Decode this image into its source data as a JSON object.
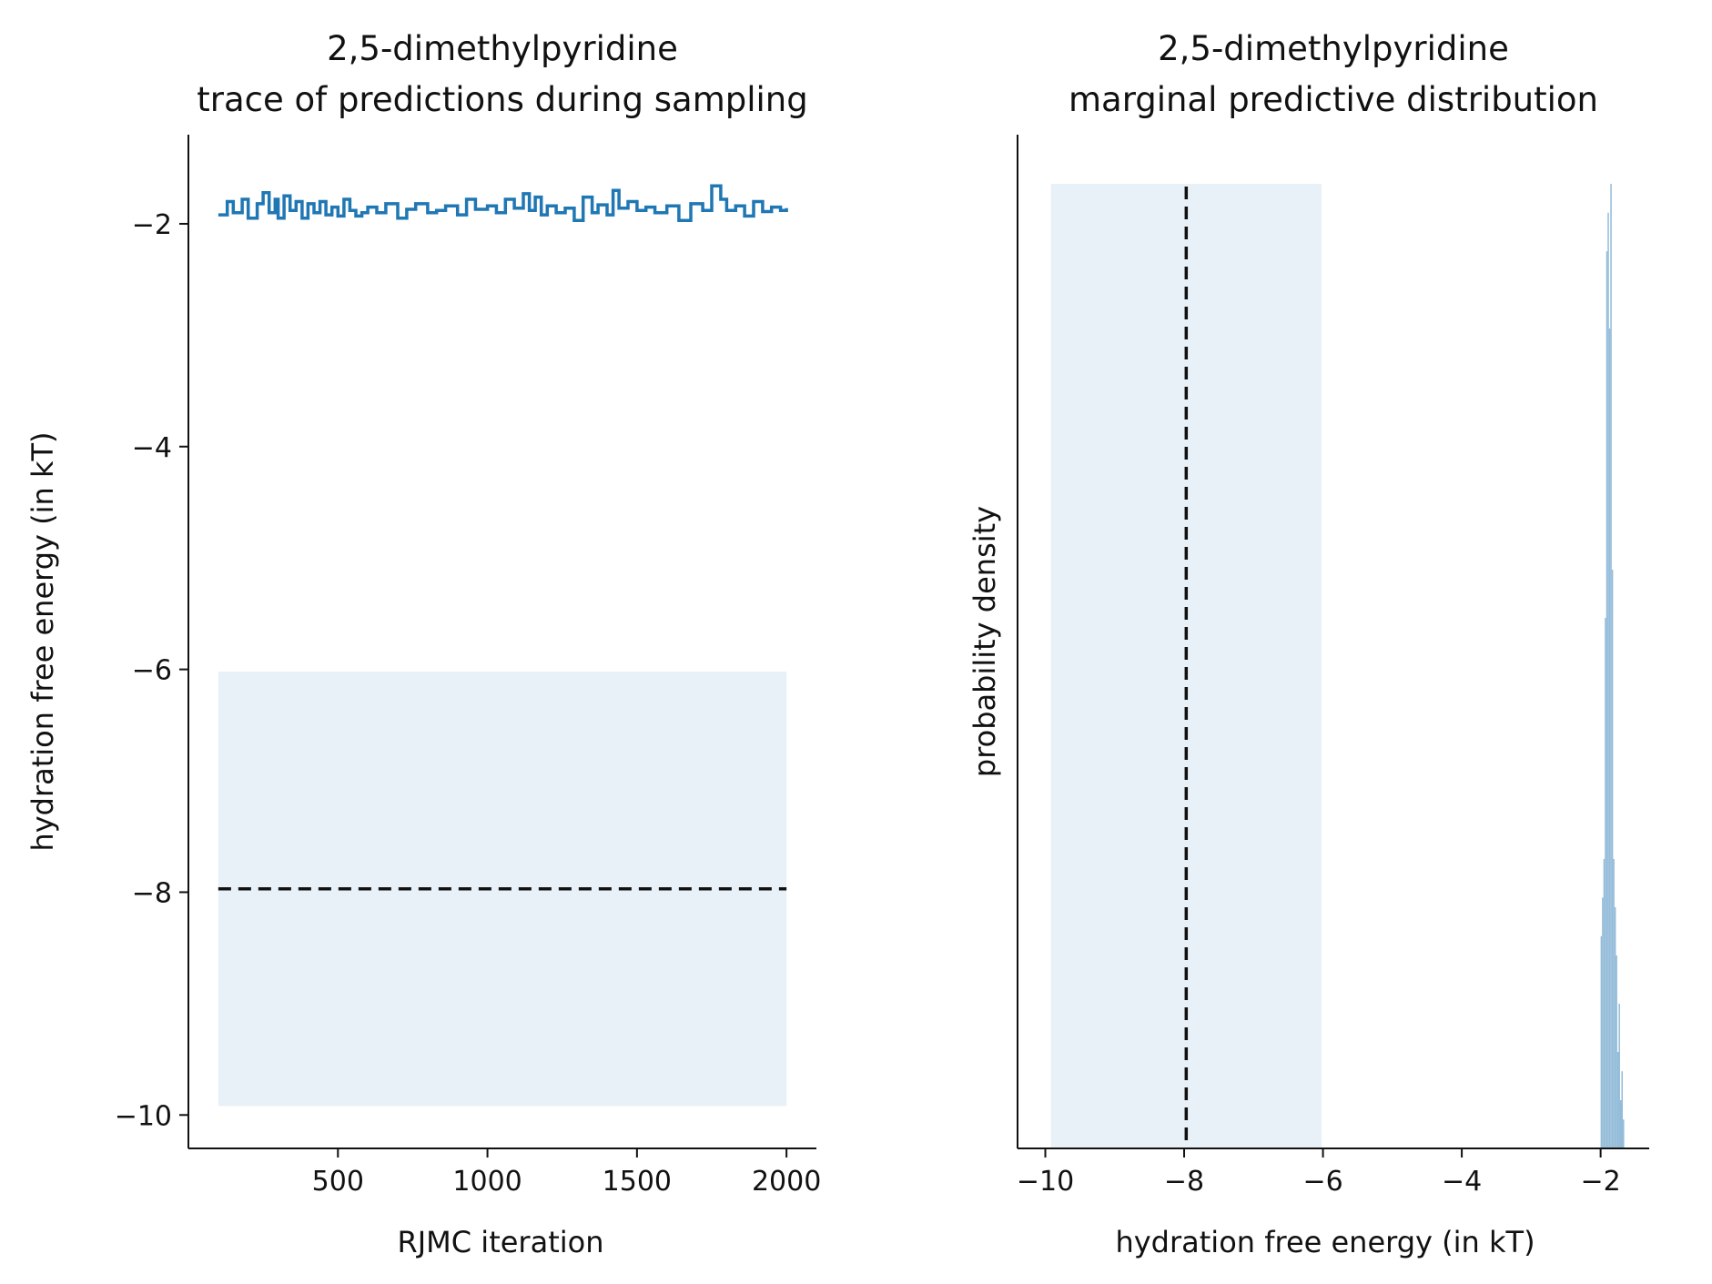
{
  "colors": {
    "trace": "#1f77b4",
    "band": "#e8f0f8",
    "hist": "#94bcd9",
    "reference": "#111111"
  },
  "chart_data": [
    {
      "type": "line",
      "title_line1": "2,5-dimethylpyridine",
      "title_line2": "trace of predictions during sampling",
      "xlabel": "RJMC iteration",
      "ylabel": "hydration free energy (in kT)",
      "xlim": [
        0,
        2100
      ],
      "ylim": [
        -10.3,
        -1.2
      ],
      "xticks": [
        500,
        1000,
        1500,
        2000
      ],
      "xtick_labels": [
        "500",
        "1000",
        "1500",
        "2000"
      ],
      "yticks": [
        -10,
        -8,
        -6,
        -4,
        -2
      ],
      "ytick_labels": [
        "−10",
        "−8",
        "−6",
        "−4",
        "−2"
      ],
      "band": {
        "x": [
          100,
          2000
        ],
        "y": [
          -9.92,
          -6.02
        ]
      },
      "reference_line": {
        "x": [
          100,
          2000
        ],
        "y": -7.97
      },
      "series": [
        {
          "x": [
            100,
            130,
            150,
            180,
            200,
            230,
            250,
            270,
            290,
            300,
            320,
            340,
            360,
            380,
            400,
            420,
            440,
            460,
            480,
            500,
            520,
            540,
            560,
            580,
            600,
            630,
            660,
            700,
            730,
            760,
            800,
            830,
            860,
            900,
            930,
            960,
            1000,
            1030,
            1060,
            1090,
            1120,
            1140,
            1160,
            1180,
            1200,
            1230,
            1260,
            1290,
            1320,
            1350,
            1370,
            1400,
            1420,
            1440,
            1470,
            1500,
            1530,
            1560,
            1600,
            1640,
            1680,
            1720,
            1750,
            1780,
            1800,
            1830,
            1860,
            1890,
            1920,
            1950,
            1980,
            2000
          ],
          "y": [
            -1.92,
            -1.8,
            -1.9,
            -1.78,
            -1.95,
            -1.82,
            -1.72,
            -1.9,
            -1.78,
            -1.95,
            -1.75,
            -1.88,
            -1.8,
            -1.95,
            -1.82,
            -1.9,
            -1.8,
            -1.92,
            -1.85,
            -1.93,
            -1.78,
            -1.88,
            -1.93,
            -1.9,
            -1.85,
            -1.9,
            -1.82,
            -1.95,
            -1.87,
            -1.82,
            -1.9,
            -1.88,
            -1.84,
            -1.92,
            -1.78,
            -1.87,
            -1.84,
            -1.9,
            -1.78,
            -1.86,
            -1.73,
            -1.88,
            -1.76,
            -1.92,
            -1.84,
            -1.9,
            -1.86,
            -1.97,
            -1.76,
            -1.9,
            -1.83,
            -1.92,
            -1.7,
            -1.86,
            -1.8,
            -1.88,
            -1.85,
            -1.9,
            -1.84,
            -1.97,
            -1.82,
            -1.88,
            -1.66,
            -1.78,
            -1.88,
            -1.84,
            -1.93,
            -1.8,
            -1.89,
            -1.85,
            -1.88,
            -1.86
          ]
        }
      ]
    },
    {
      "type": "bar",
      "title_line1": "2,5-dimethylpyridine",
      "title_line2": "marginal predictive distribution",
      "xlabel": "hydration free energy (in kT)",
      "ylabel": "probability density",
      "xlim": [
        -10.4,
        -1.3
      ],
      "xticks": [
        -10,
        -8,
        -6,
        -4,
        -2
      ],
      "xtick_labels": [
        "−10",
        "−8",
        "−6",
        "−4",
        "−2"
      ],
      "band": {
        "x": [
          -9.92,
          -6.02
        ]
      },
      "reference_line": {
        "x": -7.97
      },
      "histogram": {
        "bin_width": 0.02,
        "bins": [
          -2.0,
          -1.98,
          -1.96,
          -1.94,
          -1.92,
          -1.9,
          -1.88,
          -1.86,
          -1.84,
          -1.82,
          -1.8,
          -1.78,
          -1.76,
          -1.74,
          -1.72,
          -1.7,
          -1.68
        ],
        "density": [
          0.22,
          0.26,
          0.3,
          0.55,
          0.93,
          0.97,
          0.85,
          1.0,
          0.6,
          0.3,
          0.25,
          0.2,
          0.1,
          0.15,
          0.05,
          0.08,
          0.03
        ]
      }
    }
  ]
}
